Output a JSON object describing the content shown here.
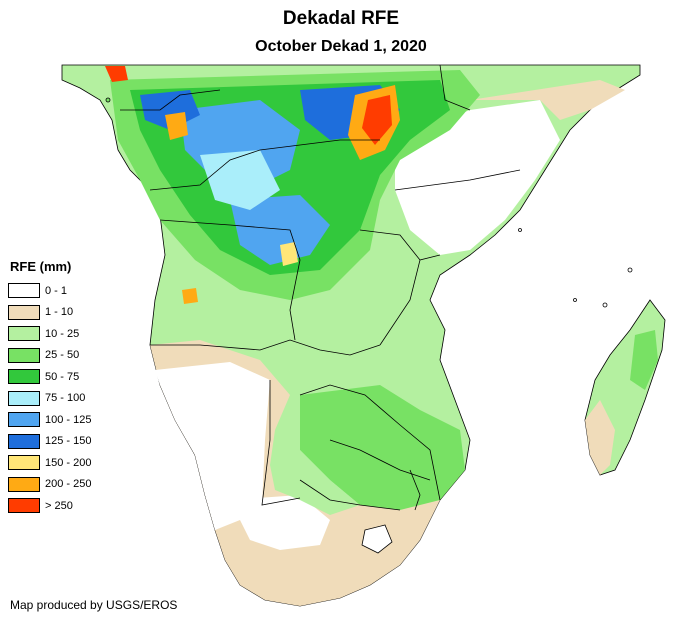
{
  "title": "Dekadal RFE",
  "subtitle": "October Dekad 1, 2020",
  "legend": {
    "title": "RFE (mm)",
    "items": [
      {
        "label": "0 - 1",
        "color": "#ffffff"
      },
      {
        "label": "1 - 10",
        "color": "#f0dcba"
      },
      {
        "label": "10 - 25",
        "color": "#b4f0a0"
      },
      {
        "label": "25 - 50",
        "color": "#78e164"
      },
      {
        "label": "50 - 75",
        "color": "#32c83c"
      },
      {
        "label": "75 - 100",
        "color": "#aaeefa"
      },
      {
        "label": "100 - 125",
        "color": "#50a5f0"
      },
      {
        "label": "125 - 150",
        "color": "#1e6edc"
      },
      {
        "label": "150 - 200",
        "color": "#ffe678"
      },
      {
        "label": "200 - 250",
        "color": "#ffaa14"
      },
      {
        "label": "> 250",
        "color": "#ff3c00"
      }
    ]
  },
  "credit": "Map produced by USGS/EROS"
}
